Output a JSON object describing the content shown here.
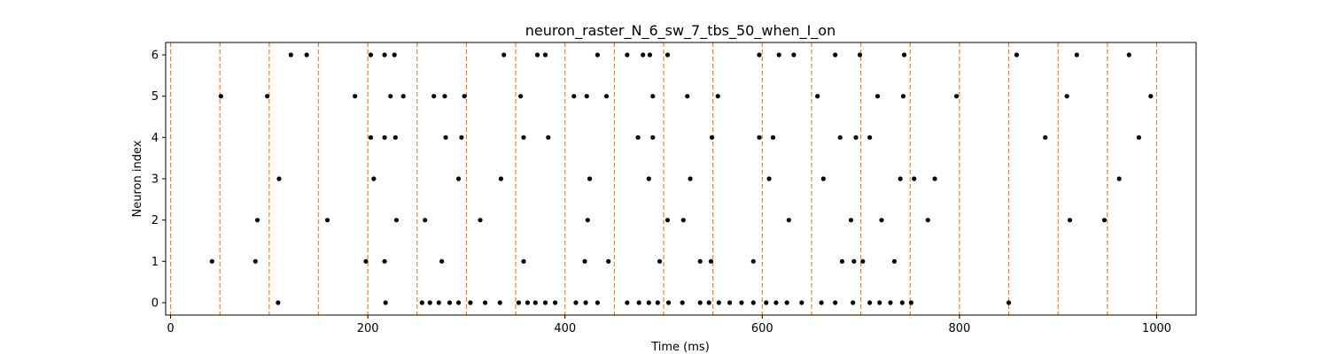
{
  "chart_data": {
    "type": "scatter",
    "title": "neuron_raster_N_6_sw_7_tbs_50_when_I_on",
    "xlabel": "Time (ms)",
    "ylabel": "Neuron index",
    "xlim": [
      -5,
      1040
    ],
    "ylim": [
      -0.3,
      6.3
    ],
    "xticks": [
      0,
      200,
      400,
      600,
      800,
      1000
    ],
    "yticks": [
      0,
      1,
      2,
      3,
      4,
      5,
      6
    ],
    "grid": false,
    "marker_color": "#000000",
    "vline_color": "#ff7f0e",
    "vlines": [
      0,
      50,
      100,
      150,
      200,
      250,
      300,
      350,
      400,
      450,
      500,
      550,
      600,
      650,
      700,
      750,
      800,
      850,
      900,
      950,
      1000
    ],
    "series": [
      {
        "neuron": 0,
        "x": [
          109,
          218,
          255,
          263,
          272,
          283,
          292,
          304,
          319,
          334,
          353,
          362,
          370,
          380,
          390,
          411,
          421,
          433,
          463,
          475,
          485,
          494,
          505,
          519,
          537,
          546,
          556,
          567,
          579,
          591,
          604,
          614,
          625,
          640,
          660,
          674,
          692,
          709,
          719,
          730,
          742,
          751,
          850
        ]
      },
      {
        "neuron": 1,
        "x": [
          42,
          86,
          198,
          217,
          275,
          358,
          420,
          444,
          496,
          537,
          548,
          591,
          681,
          693,
          702,
          734
        ]
      },
      {
        "neuron": 2,
        "x": [
          88,
          159,
          229,
          258,
          314,
          423,
          504,
          520,
          627,
          690,
          721,
          768,
          912,
          947
        ]
      },
      {
        "neuron": 3,
        "x": [
          110,
          206,
          292,
          335,
          425,
          485,
          527,
          607,
          662,
          740,
          754,
          775,
          962
        ]
      },
      {
        "neuron": 4,
        "x": [
          203,
          217,
          228,
          279,
          295,
          358,
          383,
          474,
          489,
          549,
          597,
          611,
          679,
          695,
          709,
          887,
          982
        ]
      },
      {
        "neuron": 5,
        "x": [
          51,
          98,
          187,
          223,
          236,
          267,
          278,
          298,
          355,
          409,
          422,
          442,
          489,
          524,
          555,
          656,
          717,
          743,
          797,
          909,
          994
        ]
      },
      {
        "neuron": 6,
        "x": [
          122,
          138,
          203,
          217,
          227,
          338,
          372,
          380,
          433,
          463,
          479,
          486,
          504,
          597,
          617,
          632,
          674,
          699,
          744,
          858,
          919,
          972
        ]
      }
    ]
  }
}
